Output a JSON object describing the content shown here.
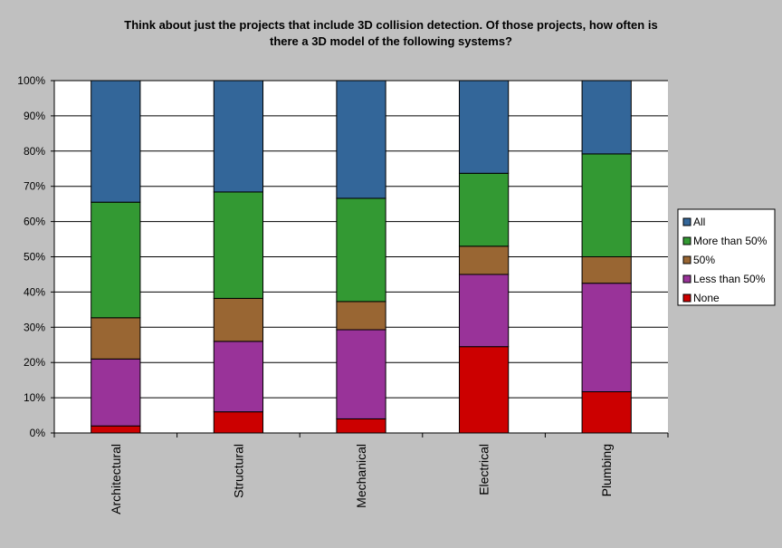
{
  "chart_data": {
    "type": "bar",
    "stacked": true,
    "normalized": true,
    "title_lines": [
      "Think about just the projects that include 3D collision detection.  Of those projects, how often is",
      "there a 3D model of the following systems?"
    ],
    "xlabel": "",
    "ylabel": "",
    "ylim": [
      0,
      100
    ],
    "yticks": [
      "0%",
      "10%",
      "20%",
      "30%",
      "40%",
      "50%",
      "60%",
      "70%",
      "80%",
      "90%",
      "100%"
    ],
    "grid": true,
    "legend_position": "right",
    "categories": [
      "Architectural",
      "Structural",
      "Mechanical",
      "Electrical",
      "Plumbing"
    ],
    "series": [
      {
        "name": "None",
        "color": "#cc0000",
        "values": [
          2,
          6,
          4,
          24.5,
          11.7
        ]
      },
      {
        "name": "Less than 50%",
        "color": "#993399",
        "values": [
          19,
          20,
          25.3,
          20.5,
          30.8
        ]
      },
      {
        "name": "50%",
        "color": "#996633",
        "values": [
          11.7,
          12.2,
          8,
          8,
          7.5
        ]
      },
      {
        "name": "More than 50%",
        "color": "#339933",
        "values": [
          32.8,
          30.2,
          29.3,
          20.7,
          29.2
        ]
      },
      {
        "name": "All",
        "color": "#336699",
        "values": [
          34.5,
          31.6,
          33.4,
          26.3,
          20.8
        ]
      }
    ],
    "legend_order": [
      "All",
      "More than 50%",
      "50%",
      "Less than 50%",
      "None"
    ]
  }
}
